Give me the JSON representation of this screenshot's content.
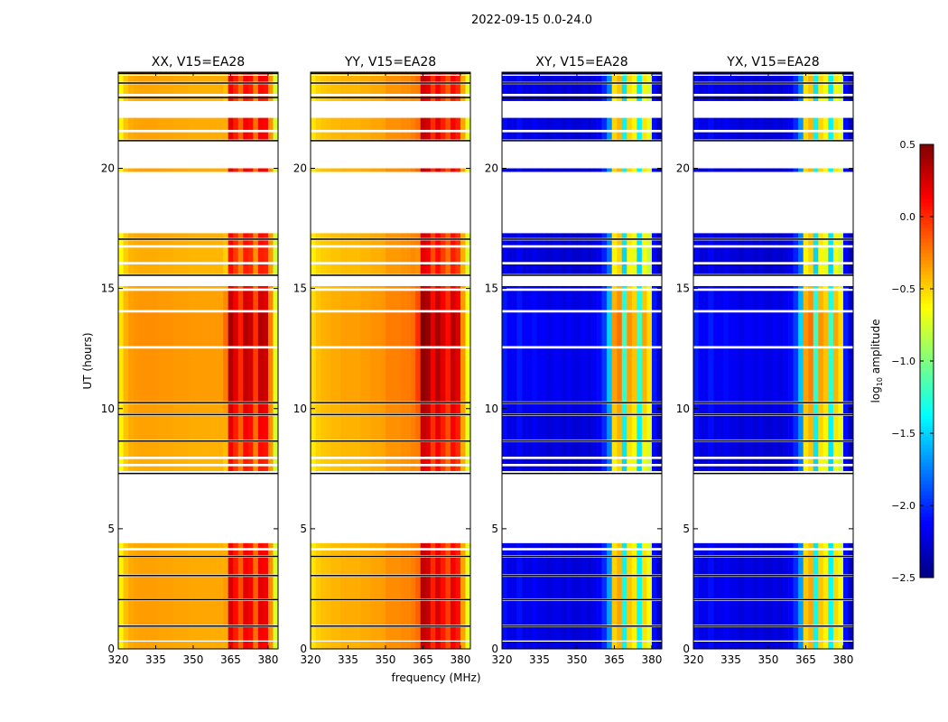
{
  "chart_data": {
    "type": "heatmap",
    "suptitle": "2022-09-15 0.0-24.0",
    "ylabel": "UT (hours)",
    "xlabel": "frequency (MHz)",
    "xlim": [
      320,
      384
    ],
    "ylim": [
      0,
      24
    ],
    "xticks": [
      320,
      335,
      350,
      365,
      380
    ],
    "yticks": [
      0,
      5,
      10,
      15,
      20
    ],
    "colorbar": {
      "label": "log10 amplitude",
      "label_main": "log",
      "label_sub": "10",
      "label_rest": " amplitude",
      "range": [
        -2.5,
        0.5
      ],
      "ticks": [
        "0.5",
        "0.0",
        "−0.5",
        "−1.0",
        "−1.5",
        "−2.0",
        "−2.5"
      ],
      "tick_values": [
        0.5,
        0.0,
        -0.5,
        -1.0,
        -1.5,
        -2.0,
        -2.5
      ],
      "colormap": "jet"
    },
    "freq_bin_edges": [
      320,
      322,
      324,
      326,
      328,
      330,
      332,
      334,
      336,
      338,
      340,
      342,
      344,
      346,
      348,
      350,
      352,
      354,
      356,
      358,
      360,
      362,
      364,
      366,
      368,
      370,
      372,
      374,
      376,
      378,
      380,
      382,
      384
    ],
    "time_bands_hours": [
      [
        0.0,
        0.3
      ],
      [
        0.35,
        0.9
      ],
      [
        1.0,
        2.0
      ],
      [
        2.1,
        3.0
      ],
      [
        3.1,
        3.8
      ],
      [
        3.9,
        4.1
      ],
      [
        4.2,
        4.4
      ],
      [
        7.4,
        7.6
      ],
      [
        7.7,
        7.9
      ],
      [
        8.0,
        8.6
      ],
      [
        8.7,
        9.7
      ],
      [
        9.8,
        10.2
      ],
      [
        10.3,
        12.5
      ],
      [
        12.6,
        14.0
      ],
      [
        14.1,
        14.9
      ],
      [
        15.0,
        15.1
      ],
      [
        15.6,
        16.0
      ],
      [
        16.1,
        16.7
      ],
      [
        16.8,
        17.0
      ],
      [
        17.1,
        17.3
      ],
      [
        19.85,
        20.0
      ],
      [
        21.2,
        21.5
      ],
      [
        21.6,
        22.1
      ],
      [
        22.8,
        23.0
      ],
      [
        23.1,
        23.5
      ],
      [
        23.6,
        23.85
      ],
      [
        23.9,
        24.0
      ]
    ],
    "band_offsets": [
      0,
      0,
      0.05,
      0.05,
      0,
      0,
      -0.05,
      -0.1,
      -0.1,
      -0.05,
      0,
      0.05,
      0.15,
      0.2,
      0.1,
      0,
      -0.1,
      -0.1,
      -0.05,
      -0.05,
      0,
      0,
      0,
      -0.1,
      -0.05,
      0,
      0
    ],
    "flag_lines_hours": [
      0.95,
      2.05,
      3.05,
      3.85,
      7.3,
      8.65,
      9.75,
      10.25,
      15.55,
      17.05,
      21.15,
      22.95,
      23.55,
      23.95
    ],
    "panels": [
      {
        "title": "XX, V15=EA28",
        "profile": [
          -0.6,
          -0.45,
          -0.38,
          -0.36,
          -0.35,
          -0.35,
          -0.35,
          -0.35,
          -0.36,
          -0.36,
          -0.36,
          -0.37,
          -0.37,
          -0.37,
          -0.38,
          -0.38,
          -0.38,
          -0.38,
          -0.38,
          -0.38,
          -0.38,
          -0.38,
          0.2,
          0.05,
          -0.15,
          0.15,
          0.1,
          -0.2,
          0.15,
          0.12,
          -0.3,
          -0.75
        ]
      },
      {
        "title": "YY, V15=EA28",
        "profile": [
          -0.55,
          -0.48,
          -0.45,
          -0.44,
          -0.42,
          -0.42,
          -0.4,
          -0.4,
          -0.4,
          -0.4,
          -0.38,
          -0.38,
          -0.36,
          -0.36,
          -0.35,
          -0.3,
          -0.3,
          -0.3,
          -0.28,
          -0.28,
          -0.25,
          -0.2,
          0.3,
          0.25,
          0.0,
          0.2,
          0.05,
          -0.1,
          0.15,
          0.05,
          -0.35,
          -0.7
        ]
      },
      {
        "title": "XY, V15=EA28",
        "profile": [
          -2.1,
          -2.2,
          -2.2,
          -2.1,
          -2.2,
          -2.2,
          -2.15,
          -2.2,
          -2.2,
          -2.25,
          -2.2,
          -2.2,
          -2.25,
          -2.2,
          -2.25,
          -2.25,
          -2.2,
          -2.25,
          -2.2,
          -2.15,
          -2.0,
          -1.7,
          -0.5,
          -0.4,
          -1.4,
          -0.5,
          -0.6,
          -1.4,
          -0.55,
          -0.7,
          -2.1,
          -2.3
        ]
      },
      {
        "title": "YX, V15=EA28",
        "profile": [
          -2.1,
          -2.2,
          -2.2,
          -2.1,
          -2.2,
          -2.2,
          -2.15,
          -2.2,
          -2.2,
          -2.25,
          -2.2,
          -2.2,
          -2.25,
          -2.2,
          -2.25,
          -2.25,
          -2.2,
          -2.25,
          -2.2,
          -2.15,
          -2.0,
          -1.7,
          -0.5,
          -0.4,
          -1.4,
          -0.5,
          -0.6,
          -1.4,
          -0.55,
          -0.7,
          -2.1,
          -2.3
        ]
      }
    ]
  }
}
